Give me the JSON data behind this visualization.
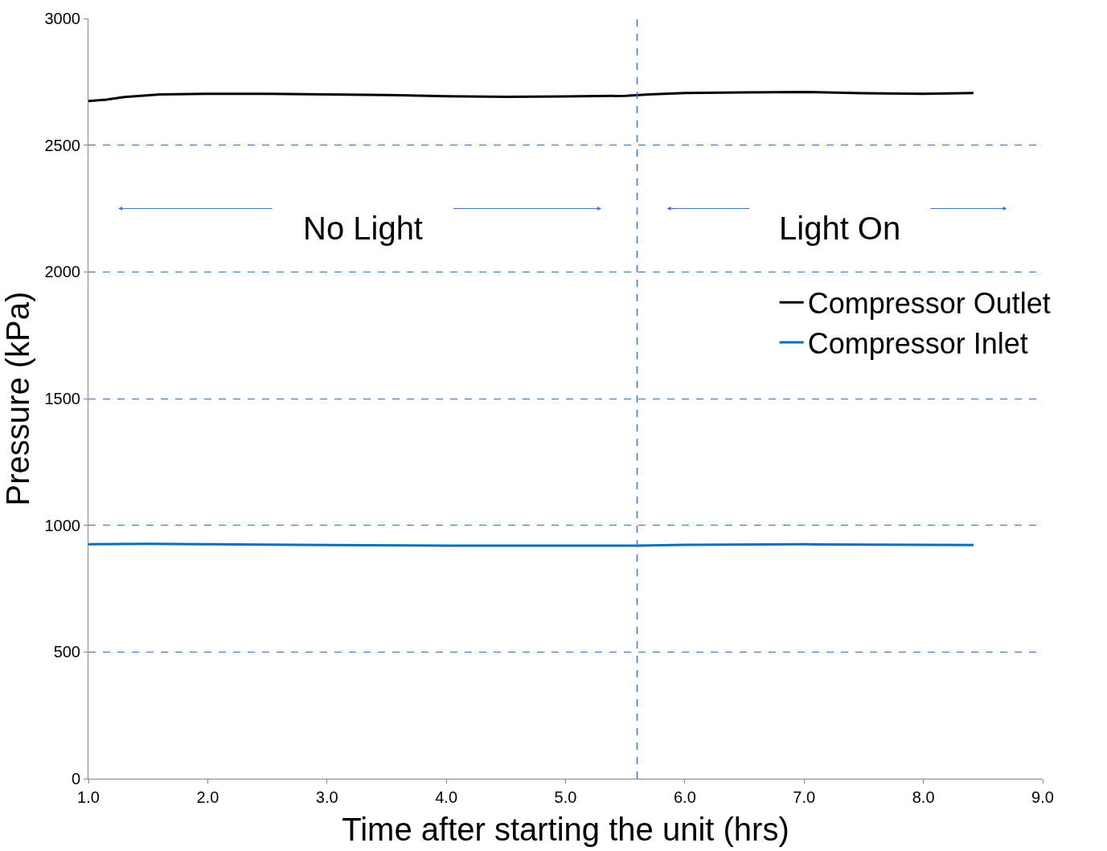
{
  "chart_data": {
    "type": "line",
    "xlabel": "Time after starting the unit (hrs)",
    "ylabel": "Pressure (kPa)",
    "xlim": [
      1.0,
      9.0
    ],
    "xticks": [
      {
        "value": 1,
        "label": "1.0"
      },
      {
        "value": 2,
        "label": "2.0"
      },
      {
        "value": 3,
        "label": "3.0"
      },
      {
        "value": 4,
        "label": "4.0"
      },
      {
        "value": 5,
        "label": "5.0"
      },
      {
        "value": 6,
        "label": "6.0"
      },
      {
        "value": 7,
        "label": "7.0"
      },
      {
        "value": 8,
        "label": "8.0"
      },
      {
        "value": 9,
        "label": "9.0"
      }
    ],
    "ylim": [
      0,
      3000
    ],
    "yticks": [
      0,
      500,
      1000,
      1500,
      2000,
      2500,
      3000
    ],
    "grid": "y",
    "legend": "right",
    "line_style": "solid",
    "marker": "none",
    "series": [
      {
        "name": "Compressor Outlet",
        "color": "#000000",
        "x": [
          1.0,
          1.15,
          1.3,
          1.6,
          2.0,
          2.5,
          3.0,
          3.5,
          4.0,
          4.5,
          5.0,
          5.5,
          5.7,
          6.0,
          6.5,
          7.0,
          7.5,
          8.0,
          8.42
        ],
        "values": [
          2674,
          2680,
          2690,
          2700,
          2703,
          2703,
          2700,
          2698,
          2693,
          2691,
          2692,
          2695,
          2700,
          2706,
          2708,
          2710,
          2705,
          2703,
          2706
        ]
      },
      {
        "name": "Compressor Inlet",
        "color": "#0070c0",
        "x": [
          1.0,
          1.5,
          2.0,
          3.0,
          4.0,
          5.0,
          5.6,
          6.0,
          7.0,
          8.0,
          8.42
        ],
        "values": [
          925,
          927,
          925,
          922,
          920,
          920,
          920,
          923,
          925,
          923,
          922
        ]
      }
    ],
    "ref_lines": [
      {
        "axis": "x",
        "value": 5.6,
        "label": null,
        "color": "#4472c4",
        "line_style": "dashed"
      }
    ],
    "annotations": [
      "No Light",
      "Light On"
    ]
  }
}
